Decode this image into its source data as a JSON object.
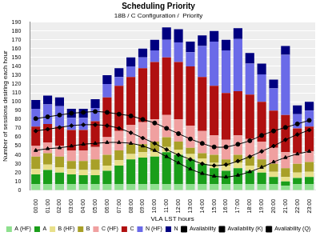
{
  "chart_data": {
    "type": "bar",
    "title": "Scheduling Priority",
    "subtitle": "18B / C Configuration /  Priority",
    "x_label": "VLA LST hours",
    "y_label": "Number of sessions desiring each hour",
    "categories": [
      "00:00",
      "01:00",
      "02:00",
      "03:00",
      "04:00",
      "05:00",
      "06:00",
      "07:00",
      "08:00",
      "09:00",
      "10:00",
      "11:00",
      "12:00",
      "13:00",
      "14:00",
      "15:00",
      "16:00",
      "17:00",
      "18:00",
      "19:00",
      "20:00",
      "21:00",
      "22:00",
      "23:00"
    ],
    "stacked": true,
    "grid": true,
    "legend": "bottom",
    "ylim": [
      0,
      190
    ],
    "yticks": [
      0,
      10,
      20,
      30,
      40,
      50,
      60,
      70,
      80,
      90,
      100,
      110,
      120,
      130,
      140,
      150,
      160,
      170,
      180,
      190
    ],
    "series": [
      {
        "name": "A (HF)",
        "color": "#8ee08e",
        "values": [
          7,
          7,
          7,
          7,
          7,
          7,
          7,
          7,
          7,
          7,
          7,
          7,
          7,
          7,
          7,
          7,
          7,
          7,
          7,
          7,
          7,
          5,
          7,
          7
        ]
      },
      {
        "name": "A",
        "color": "#1a9e1a",
        "values": [
          11,
          16,
          13,
          11,
          10,
          10,
          15,
          21,
          28,
          30,
          31,
          36,
          33,
          28,
          23,
          18,
          15,
          18,
          15,
          13,
          8,
          5,
          7,
          8
        ]
      },
      {
        "name": "B (HF)",
        "color": "#e8e08a",
        "values": [
          6,
          6,
          6,
          6,
          6,
          6,
          6,
          6,
          6,
          6,
          6,
          6,
          6,
          6,
          6,
          6,
          6,
          6,
          6,
          6,
          6,
          5,
          6,
          6
        ]
      },
      {
        "name": "B",
        "color": "#a8a028",
        "values": [
          14,
          13,
          12,
          9,
          10,
          12,
          12,
          11,
          11,
          9,
          11,
          11,
          9,
          7,
          6,
          9,
          7,
          9,
          10,
          9,
          9,
          10,
          10,
          11
        ]
      },
      {
        "name": "C (HF)",
        "color": "#f0a0a0",
        "values": [
          12,
          12,
          12,
          12,
          12,
          14,
          20,
          22,
          22,
          25,
          25,
          25,
          25,
          25,
          25,
          22,
          22,
          22,
          20,
          20,
          18,
          18,
          12,
          12
        ]
      },
      {
        "name": "C",
        "color": "#b01010",
        "values": [
          22,
          21,
          22,
          23,
          23,
          29,
          45,
          51,
          54,
          61,
          65,
          65,
          65,
          67,
          61,
          56,
          53,
          50,
          50,
          45,
          42,
          42,
          28,
          28
        ]
      },
      {
        "name": "N (HF)",
        "color": "#6a6ae8",
        "values": [
          20,
          22,
          23,
          14,
          14,
          15,
          15,
          10,
          12,
          12,
          13,
          20,
          22,
          16,
          35,
          50,
          48,
          59,
          35,
          31,
          25,
          68,
          16,
          18
        ]
      },
      {
        "name": "N",
        "color": "#000080",
        "values": [
          10,
          10,
          10,
          10,
          10,
          10,
          10,
          10,
          10,
          10,
          12,
          14,
          15,
          12,
          12,
          12,
          12,
          12,
          12,
          12,
          10,
          10,
          10,
          10
        ]
      },
      {
        "name": "Availability",
        "type": "line",
        "color": "#000000",
        "marker": "circle",
        "line_style": "solid",
        "values": [
          81,
          83,
          85,
          87,
          88,
          89,
          88,
          86,
          84,
          80,
          76,
          70,
          64,
          58,
          53,
          49,
          49,
          52,
          56,
          62,
          67,
          71,
          75,
          79
        ]
      },
      {
        "name": "Availability (K)",
        "type": "line",
        "color": "#000000",
        "marker": "diamond",
        "line_style": "solid",
        "values": [
          67,
          69,
          71,
          73,
          74,
          74,
          73,
          70,
          65,
          59,
          53,
          46,
          40,
          35,
          30,
          28,
          29,
          33,
          38,
          44,
          50,
          57,
          63,
          68
        ]
      },
      {
        "name": "Availability (Q)",
        "type": "line",
        "color": "#000000",
        "marker": "triangle",
        "line_style": "solid",
        "values": [
          45,
          47,
          48,
          50,
          52,
          53,
          54,
          54,
          53,
          50,
          45,
          38,
          31,
          24,
          19,
          16,
          15,
          17,
          21,
          26,
          32,
          37,
          41,
          44
        ]
      }
    ]
  }
}
